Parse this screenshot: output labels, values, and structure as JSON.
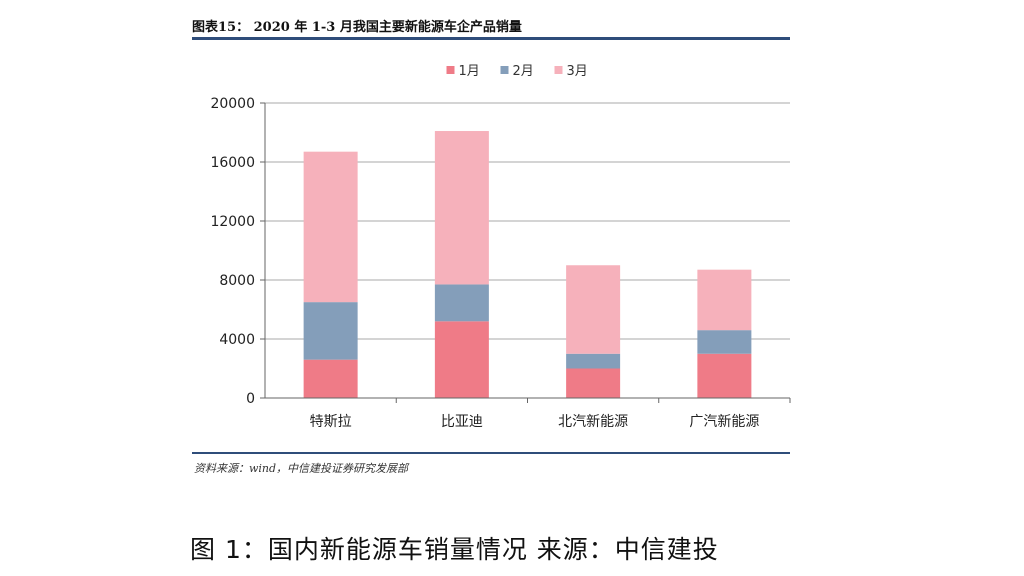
{
  "figure": {
    "title": "图表15：  2020 年 1-3 月我国主要新能源车企产品销量",
    "source": "资料来源：wind，中信建投证券研究发展部",
    "caption": "图 1：国内新能源车销量情况  来源：中信建投"
  },
  "chart_data": {
    "type": "bar",
    "stacked": true,
    "categories": [
      "特斯拉",
      "比亚迪",
      "北汽新能源",
      "广汽新能源"
    ],
    "series": [
      {
        "name": "1月",
        "color": "#ef7b87",
        "values": [
          2600,
          5200,
          2000,
          3000
        ]
      },
      {
        "name": "2月",
        "color": "#849eba",
        "values": [
          3900,
          2500,
          1000,
          1600
        ]
      },
      {
        "name": "3月",
        "color": "#f6b1bb",
        "values": [
          10200,
          10400,
          6000,
          4100
        ]
      }
    ],
    "yticks": [
      0,
      4000,
      8000,
      12000,
      16000,
      20000
    ],
    "ylim": [
      0,
      20000
    ],
    "grid": true,
    "legend_position": "top-center",
    "xlabel": "",
    "ylabel": ""
  }
}
